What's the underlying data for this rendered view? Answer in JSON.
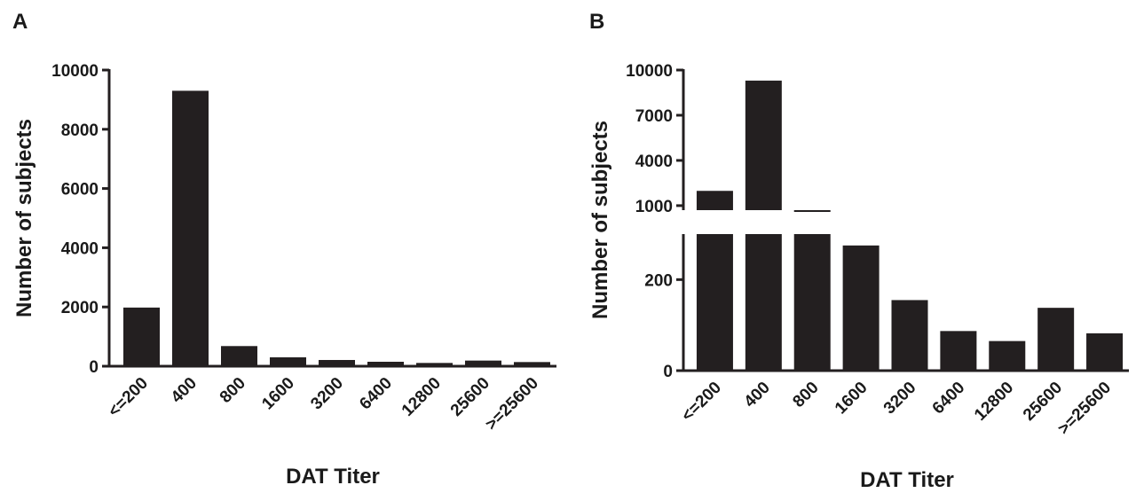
{
  "chart_data": [
    {
      "panel": "A",
      "type": "bar",
      "categories": [
        "<=200",
        "400",
        "800",
        "1600",
        "3200",
        "6400",
        "12800",
        "25600",
        ">=25600"
      ],
      "values": [
        1980,
        9300,
        680,
        300,
        210,
        150,
        110,
        190,
        140
      ],
      "xlabel": "DAT Titer",
      "ylabel": "Number of subjects",
      "ylim": [
        0,
        10000
      ],
      "yticks": [
        0,
        2000,
        4000,
        6000,
        8000,
        10000
      ],
      "bar_color": "#231f20"
    },
    {
      "panel": "B",
      "type": "bar",
      "broken_axis": true,
      "categories": [
        "<=200",
        "400",
        "800",
        "1600",
        "3200",
        "6400",
        "12800",
        "25600",
        ">=25600"
      ],
      "values": [
        1980,
        9300,
        680,
        275,
        155,
        87,
        65,
        138,
        82
      ],
      "xlabel": "DAT Titer",
      "ylabel": "Number of subjects",
      "lower_range": [
        0,
        300
      ],
      "upper_range": [
        700,
        10000
      ],
      "yticks_lower": [
        0,
        200
      ],
      "yticks_upper": [
        1000,
        4000,
        7000,
        10000
      ],
      "bar_color": "#231f20"
    }
  ]
}
